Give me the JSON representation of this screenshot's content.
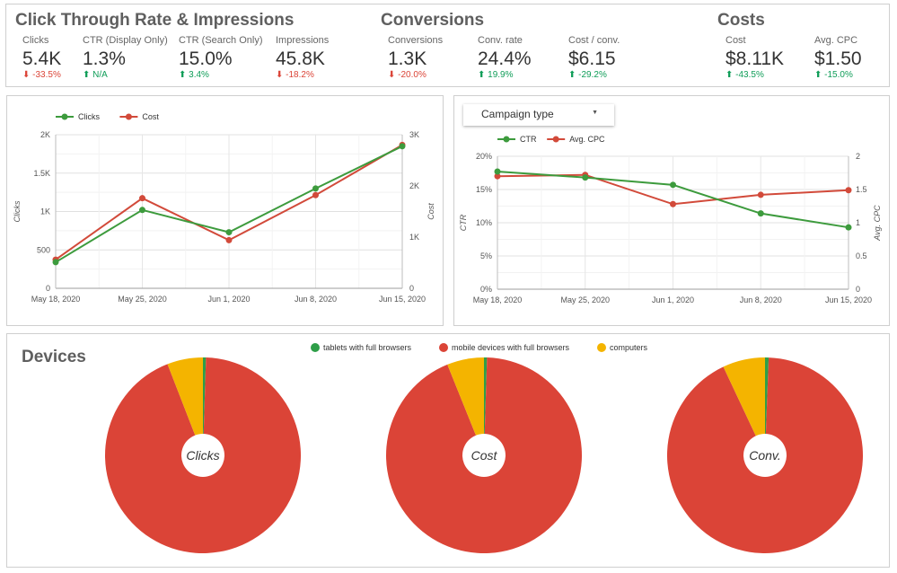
{
  "kpis": {
    "ctr_section": {
      "title": "Click Through Rate & Impressions",
      "items": [
        {
          "label": "Clicks",
          "value": "5.4K",
          "change": "-33.5%",
          "direction": "down"
        },
        {
          "label": "CTR (Display Only)",
          "value": "1.3%",
          "change": "N/A",
          "direction": "up"
        },
        {
          "label": "CTR (Search Only)",
          "value": "15.0%",
          "change": "3.4%",
          "direction": "up"
        },
        {
          "label": "Impressions",
          "value": "45.8K",
          "change": "-18.2%",
          "direction": "down"
        }
      ]
    },
    "conversions_section": {
      "title": "Conversions",
      "items": [
        {
          "label": "Conversions",
          "value": "1.3K",
          "change": "-20.0%",
          "direction": "down"
        },
        {
          "label": "Conv. rate",
          "value": "24.4%",
          "change": "19.9%",
          "direction": "up"
        },
        {
          "label": "Cost / conv.",
          "value": "$6.15",
          "change": "-29.2%",
          "direction": "up"
        }
      ]
    },
    "costs_section": {
      "title": "Costs",
      "items": [
        {
          "label": "Cost",
          "value": "$8.11K",
          "change": "-43.5%",
          "direction": "up"
        },
        {
          "label": "Avg. CPC",
          "value": "$1.50",
          "change": "-15.0%",
          "direction": "up"
        }
      ]
    }
  },
  "colors": {
    "green": "#3d9b3d",
    "red": "#d24a3a",
    "yellow": "#f4b400",
    "pie_red": "#db4437",
    "pie_green": "#2e9e48"
  },
  "campaign_dropdown": {
    "label": "Campaign type"
  },
  "devices": {
    "title": "Devices"
  },
  "chart_data": [
    {
      "type": "line",
      "categories": [
        "May 18, 2020",
        "May 25, 2020",
        "Jun 1, 2020",
        "Jun 8, 2020",
        "Jun 15, 2020"
      ],
      "series": [
        {
          "name": "Clicks",
          "axis": "left",
          "values": [
            340,
            1020,
            730,
            1300,
            1850
          ]
        },
        {
          "name": "Cost",
          "axis": "right",
          "values": [
            560,
            1760,
            940,
            1820,
            2800
          ]
        }
      ],
      "ylabel": "Clicks",
      "ylabel_right": "Cost",
      "ylim": [
        0,
        2000
      ],
      "ylim_right": [
        0,
        3000
      ],
      "yticks": [
        "0",
        "500",
        "1K",
        "1.5K",
        "2K"
      ],
      "yticks_right": [
        "0",
        "1K",
        "2K",
        "3K"
      ],
      "grid": true,
      "legend": "top-left"
    },
    {
      "type": "line",
      "categories": [
        "May 18, 2020",
        "May 25, 2020",
        "Jun 1, 2020",
        "Jun 8, 2020",
        "Jun 15, 2020"
      ],
      "series": [
        {
          "name": "CTR",
          "axis": "left",
          "values": [
            17.7,
            16.8,
            15.7,
            11.4,
            9.3
          ]
        },
        {
          "name": "Avg. CPC",
          "axis": "right",
          "values": [
            1.7,
            1.72,
            1.28,
            1.42,
            1.49
          ]
        }
      ],
      "ylabel": "CTR",
      "ylabel_right": "Avg. CPC",
      "ylim": [
        0,
        20
      ],
      "ylim_right": [
        0,
        2
      ],
      "yticks": [
        "0%",
        "5%",
        "10%",
        "15%",
        "20%"
      ],
      "yticks_right": [
        "0",
        "0.5",
        "1",
        "1.5",
        "2"
      ],
      "grid": true,
      "legend": "top-left"
    },
    {
      "type": "pie",
      "legend": [
        "tablets with full browsers",
        "mobile devices with full browsers",
        "computers"
      ],
      "legend_placement": "top-center",
      "donut": true,
      "pies": [
        {
          "center_label": "Clicks",
          "values": [
            0.5,
            93.6,
            5.9
          ]
        },
        {
          "center_label": "Cost",
          "values": [
            0.5,
            93.4,
            6.1
          ]
        },
        {
          "center_label": "Conv.",
          "values": [
            0.6,
            92.4,
            7.0
          ]
        }
      ]
    }
  ]
}
